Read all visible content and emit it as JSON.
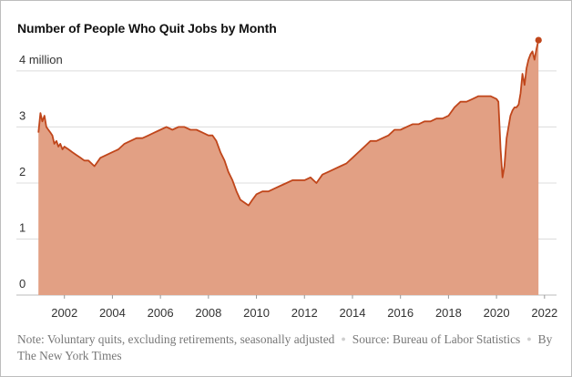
{
  "title": "Number of People Who Quit Jobs by Month",
  "note": {
    "text": "Note: Voluntary quits, excluding retirements, seasonally adjusted",
    "source": "Source: Bureau of Labor Statistics",
    "credit": "By The New York Times"
  },
  "colors": {
    "line": "#c0461b",
    "fill": "#e2a084",
    "grid": "#dcdcdc"
  },
  "chart_data": {
    "type": "area",
    "title": "Number of People Who Quit Jobs by Month",
    "xlabel": "",
    "ylabel": "",
    "units": "millions of quits",
    "xlim": [
      2000.0,
      2022.5
    ],
    "ylim": [
      0,
      4.6
    ],
    "x_ticks": [
      2002,
      2004,
      2006,
      2008,
      2010,
      2012,
      2014,
      2016,
      2018,
      2020,
      2022
    ],
    "y_ticks": [
      {
        "value": 0,
        "label": "0"
      },
      {
        "value": 1,
        "label": "1"
      },
      {
        "value": 2,
        "label": "2"
      },
      {
        "value": 3,
        "label": "3"
      },
      {
        "value": 4,
        "label": "4 million"
      }
    ],
    "grid": true,
    "endpoint_marker": true,
    "x": [
      2000.92,
      2001.0,
      2001.08,
      2001.17,
      2001.25,
      2001.33,
      2001.42,
      2001.5,
      2001.58,
      2001.67,
      2001.75,
      2001.83,
      2001.92,
      2002.0,
      2002.17,
      2002.33,
      2002.5,
      2002.67,
      2002.83,
      2003.0,
      2003.25,
      2003.5,
      2003.75,
      2004.0,
      2004.25,
      2004.5,
      2004.75,
      2005.0,
      2005.25,
      2005.5,
      2005.75,
      2006.0,
      2006.25,
      2006.5,
      2006.75,
      2007.0,
      2007.25,
      2007.5,
      2007.75,
      2008.0,
      2008.17,
      2008.33,
      2008.5,
      2008.67,
      2008.83,
      2009.0,
      2009.17,
      2009.33,
      2009.5,
      2009.67,
      2009.83,
      2010.0,
      2010.25,
      2010.5,
      2010.75,
      2011.0,
      2011.25,
      2011.5,
      2011.75,
      2012.0,
      2012.25,
      2012.5,
      2012.75,
      2013.0,
      2013.25,
      2013.5,
      2013.75,
      2014.0,
      2014.25,
      2014.5,
      2014.75,
      2015.0,
      2015.25,
      2015.5,
      2015.75,
      2016.0,
      2016.25,
      2016.5,
      2016.75,
      2017.0,
      2017.25,
      2017.5,
      2017.75,
      2018.0,
      2018.25,
      2018.5,
      2018.75,
      2019.0,
      2019.25,
      2019.5,
      2019.75,
      2020.0,
      2020.08,
      2020.17,
      2020.25,
      2020.33,
      2020.42,
      2020.5,
      2020.58,
      2020.67,
      2020.75,
      2020.83,
      2020.92,
      2021.0,
      2021.08,
      2021.17,
      2021.25,
      2021.33,
      2021.42,
      2021.5,
      2021.58,
      2021.67,
      2021.75
    ],
    "values": [
      2.9,
      3.25,
      3.1,
      3.2,
      3.0,
      2.95,
      2.9,
      2.85,
      2.7,
      2.75,
      2.65,
      2.7,
      2.6,
      2.65,
      2.6,
      2.55,
      2.5,
      2.45,
      2.4,
      2.4,
      2.3,
      2.45,
      2.5,
      2.55,
      2.6,
      2.7,
      2.75,
      2.8,
      2.8,
      2.85,
      2.9,
      2.95,
      3.0,
      2.95,
      3.0,
      3.0,
      2.95,
      2.95,
      2.9,
      2.85,
      2.85,
      2.75,
      2.55,
      2.4,
      2.2,
      2.05,
      1.85,
      1.7,
      1.65,
      1.6,
      1.7,
      1.8,
      1.85,
      1.85,
      1.9,
      1.95,
      2.0,
      2.05,
      2.05,
      2.05,
      2.1,
      2.0,
      2.15,
      2.2,
      2.25,
      2.3,
      2.35,
      2.45,
      2.55,
      2.65,
      2.75,
      2.75,
      2.8,
      2.85,
      2.95,
      2.95,
      3.0,
      3.05,
      3.05,
      3.1,
      3.1,
      3.15,
      3.15,
      3.2,
      3.35,
      3.45,
      3.45,
      3.5,
      3.55,
      3.55,
      3.55,
      3.5,
      3.45,
      2.6,
      2.1,
      2.3,
      2.8,
      3.0,
      3.2,
      3.3,
      3.35,
      3.35,
      3.4,
      3.6,
      3.95,
      3.75,
      4.05,
      4.2,
      4.3,
      4.35,
      4.2,
      4.4,
      4.55
    ]
  }
}
